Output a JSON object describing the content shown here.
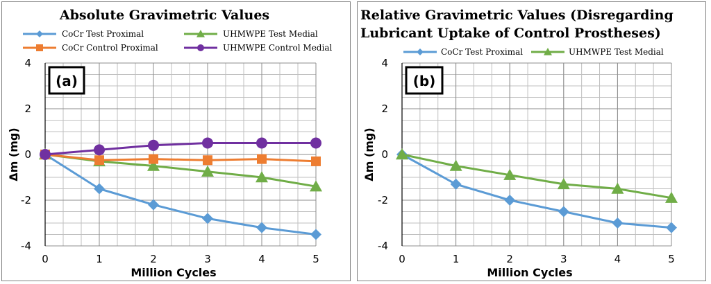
{
  "chart_data": [
    {
      "type": "line",
      "title_lines": [
        "Absolute Gravimetric Values"
      ],
      "panel_label": "(a)",
      "xlabel": "Million Cycles",
      "ylabel": "Δm (mg)",
      "xlim": [
        0,
        5
      ],
      "ylim": [
        -4,
        4
      ],
      "xticks": [
        0,
        1,
        2,
        3,
        4,
        5
      ],
      "yticks": [
        -4,
        -2,
        0,
        2,
        4
      ],
      "grid": true,
      "legend_position": "top",
      "series": [
        {
          "name": "CoCr Test Proximal",
          "color": "#5b9bd5",
          "marker": "diamond",
          "x": [
            0,
            1,
            2,
            3,
            4,
            5
          ],
          "y": [
            0,
            -1.5,
            -2.2,
            -2.8,
            -3.2,
            -3.5
          ]
        },
        {
          "name": "UHMWPE Test Medial",
          "color": "#70ad47",
          "marker": "triangle",
          "x": [
            0,
            1,
            2,
            3,
            4,
            5
          ],
          "y": [
            0,
            -0.3,
            -0.5,
            -0.75,
            -1.0,
            -1.4
          ]
        },
        {
          "name": "CoCr Control Proximal",
          "color": "#ed7d31",
          "marker": "square",
          "x": [
            0,
            1,
            2,
            3,
            4,
            5
          ],
          "y": [
            0,
            -0.25,
            -0.2,
            -0.25,
            -0.2,
            -0.3
          ]
        },
        {
          "name": "UHMWPE Control Medial",
          "color": "#7030a0",
          "marker": "circle",
          "x": [
            0,
            1,
            2,
            3,
            4,
            5
          ],
          "y": [
            0,
            0.2,
            0.4,
            0.5,
            0.5,
            0.5
          ]
        }
      ]
    },
    {
      "type": "line",
      "title_lines": [
        "Relative Gravimetric Values (Disregarding",
        "Lubricant Uptake of Control Prostheses)"
      ],
      "panel_label": "(b)",
      "xlabel": "Million Cycles",
      "ylabel": "Δm (mg)",
      "xlim": [
        0,
        5
      ],
      "ylim": [
        -4,
        4
      ],
      "xticks": [
        0,
        1,
        2,
        3,
        4,
        5
      ],
      "yticks": [
        -4,
        -2,
        0,
        2,
        4
      ],
      "grid": true,
      "legend_position": "top",
      "series": [
        {
          "name": "CoCr Test Proximal",
          "color": "#5b9bd5",
          "marker": "diamond",
          "x": [
            0,
            1,
            2,
            3,
            4,
            5
          ],
          "y": [
            0,
            -1.3,
            -2.0,
            -2.5,
            -3.0,
            -3.2
          ]
        },
        {
          "name": "UHMWPE Test Medial",
          "color": "#70ad47",
          "marker": "triangle",
          "x": [
            0,
            1,
            2,
            3,
            4,
            5
          ],
          "y": [
            0,
            -0.5,
            -0.9,
            -1.3,
            -1.5,
            -1.9
          ]
        }
      ]
    }
  ]
}
